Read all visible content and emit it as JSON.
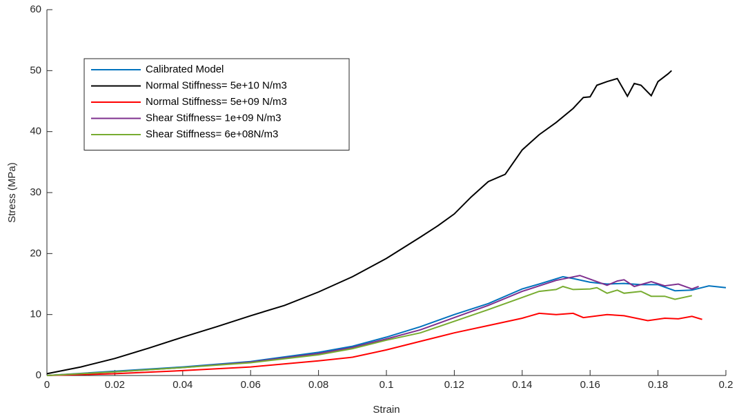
{
  "chart_data": {
    "type": "line",
    "x_label": "Strain",
    "y_label": "Stress (MPa)",
    "xlim": [
      0,
      0.2
    ],
    "ylim": [
      0,
      60
    ],
    "xticks": [
      0,
      0.02,
      0.04,
      0.06,
      0.08,
      0.1,
      0.12,
      0.14,
      0.16,
      0.18,
      0.2
    ],
    "yticks": [
      0,
      10,
      20,
      30,
      40,
      50,
      60
    ],
    "legend": "upper left",
    "series": [
      {
        "name": "Calibrated Model",
        "color": "#0072BD",
        "x": [
          0,
          0.02,
          0.04,
          0.06,
          0.08,
          0.09,
          0.1,
          0.11,
          0.12,
          0.13,
          0.14,
          0.145,
          0.152,
          0.155,
          0.16,
          0.165,
          0.17,
          0.175,
          0.18,
          0.185,
          0.19,
          0.195,
          0.2
        ],
        "values": [
          0,
          0.7,
          1.4,
          2.3,
          3.8,
          4.8,
          6.3,
          8.0,
          10.0,
          11.8,
          14.2,
          15.0,
          16.2,
          15.9,
          15.3,
          15.0,
          15.1,
          14.9,
          14.9,
          13.9,
          14.0,
          14.7,
          14.4
        ]
      },
      {
        "name": "Normal Stiffness= 5e+10 N/m3",
        "color": "#000000",
        "x": [
          0,
          0.01,
          0.02,
          0.03,
          0.04,
          0.05,
          0.06,
          0.07,
          0.08,
          0.09,
          0.1,
          0.11,
          0.115,
          0.12,
          0.125,
          0.13,
          0.135,
          0.14,
          0.145,
          0.15,
          0.155,
          0.158,
          0.16,
          0.162,
          0.165,
          0.168,
          0.171,
          0.173,
          0.175,
          0.178,
          0.18,
          0.183,
          0.184
        ],
        "values": [
          0.3,
          1.4,
          2.8,
          4.5,
          6.3,
          8.0,
          9.8,
          11.5,
          13.7,
          16.2,
          19.2,
          22.7,
          24.5,
          26.5,
          29.3,
          31.8,
          33.0,
          37.0,
          39.5,
          41.5,
          43.8,
          45.6,
          45.7,
          47.6,
          48.2,
          48.7,
          45.8,
          47.9,
          47.6,
          45.9,
          48.2,
          49.5,
          50.0
        ]
      },
      {
        "name": "Normal Stiffness= 5e+09 N/m3",
        "color": "#FF0000",
        "x": [
          0,
          0.02,
          0.04,
          0.06,
          0.08,
          0.09,
          0.1,
          0.11,
          0.12,
          0.13,
          0.14,
          0.145,
          0.15,
          0.155,
          0.158,
          0.165,
          0.17,
          0.177,
          0.182,
          0.186,
          0.19,
          0.193
        ],
        "values": [
          0,
          0.3,
          0.8,
          1.4,
          2.4,
          3.0,
          4.2,
          5.6,
          7.0,
          8.2,
          9.4,
          10.2,
          10.0,
          10.2,
          9.5,
          10.0,
          9.8,
          9.0,
          9.4,
          9.3,
          9.7,
          9.2
        ]
      },
      {
        "name": "Shear Stiffness= 1e+09 N/m3",
        "color": "#7E2F8E",
        "x": [
          0,
          0.02,
          0.04,
          0.06,
          0.08,
          0.09,
          0.1,
          0.11,
          0.12,
          0.13,
          0.14,
          0.15,
          0.157,
          0.16,
          0.165,
          0.168,
          0.17,
          0.173,
          0.178,
          0.182,
          0.186,
          0.19,
          0.192
        ],
        "values": [
          0,
          0.6,
          1.3,
          2.2,
          3.6,
          4.6,
          6.0,
          7.5,
          9.5,
          11.5,
          13.8,
          15.6,
          16.4,
          15.8,
          14.8,
          15.5,
          15.7,
          14.6,
          15.4,
          14.7,
          15.0,
          14.2,
          14.6
        ]
      },
      {
        "name": "Shear Stiffness= 6e+08N/m3",
        "color": "#77AC30",
        "x": [
          0,
          0.02,
          0.04,
          0.06,
          0.08,
          0.09,
          0.1,
          0.11,
          0.12,
          0.13,
          0.14,
          0.145,
          0.15,
          0.152,
          0.155,
          0.16,
          0.162,
          0.165,
          0.168,
          0.17,
          0.175,
          0.178,
          0.182,
          0.185,
          0.19
        ],
        "values": [
          0,
          0.6,
          1.3,
          2.1,
          3.4,
          4.4,
          5.8,
          7.0,
          8.9,
          10.8,
          12.8,
          13.8,
          14.1,
          14.6,
          14.1,
          14.2,
          14.4,
          13.5,
          14.0,
          13.5,
          13.8,
          13.0,
          13.0,
          12.5,
          13.1
        ]
      }
    ]
  }
}
